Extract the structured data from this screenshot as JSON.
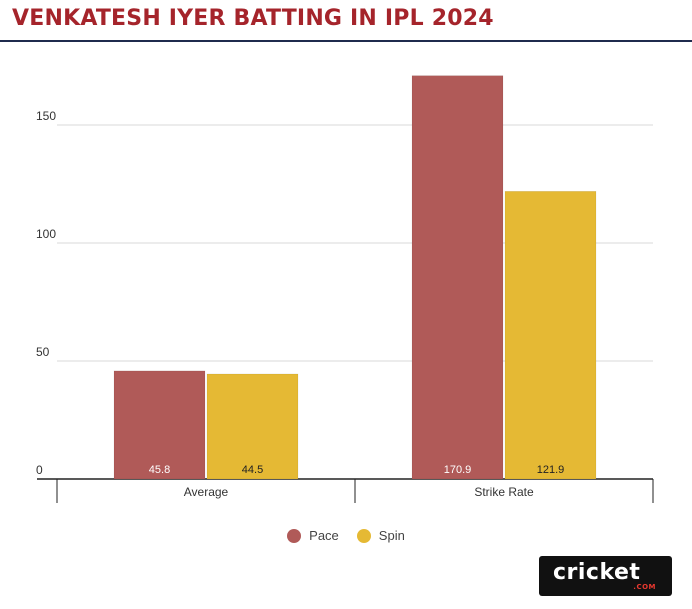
{
  "title": "VENKATESH IYER BATTING IN IPL 2024",
  "colors": {
    "pace": "#b05a58",
    "spin": "#e5b934",
    "title": "#a5242b"
  },
  "chart_data": {
    "type": "bar",
    "title": "VENKATESH IYER BATTING IN IPL 2024",
    "categories": [
      "Average",
      "Strike Rate"
    ],
    "series": [
      {
        "name": "Pace",
        "values": [
          45.8,
          170.9
        ],
        "labels": [
          "45.8",
          "170.9"
        ]
      },
      {
        "name": "Spin",
        "values": [
          44.5,
          121.9
        ],
        "labels": [
          "44.5",
          "121.9"
        ]
      }
    ],
    "yticks": [
      0,
      50,
      100,
      150
    ],
    "ytick_labels": [
      "0",
      "50",
      "100",
      "150"
    ],
    "ylim": [
      0,
      175
    ],
    "xlabel": "",
    "ylabel": "",
    "legend": "bottom-center",
    "grid": true
  },
  "legend": {
    "items": [
      "Pace",
      "Spin"
    ]
  },
  "logo": {
    "main": "cricket",
    "sub": ".COM"
  }
}
